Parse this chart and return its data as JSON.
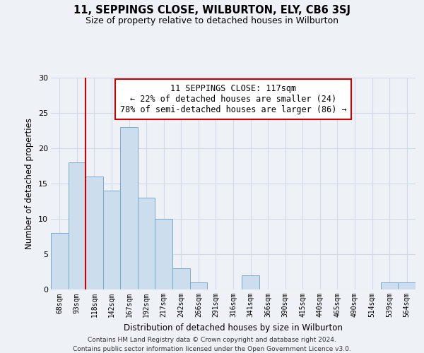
{
  "title": "11, SEPPINGS CLOSE, WILBURTON, ELY, CB6 3SJ",
  "subtitle": "Size of property relative to detached houses in Wilburton",
  "xlabel": "Distribution of detached houses by size in Wilburton",
  "ylabel": "Number of detached properties",
  "bar_color": "#ccdded",
  "bar_edge_color": "#7aaac8",
  "bins": [
    "68sqm",
    "93sqm",
    "118sqm",
    "142sqm",
    "167sqm",
    "192sqm",
    "217sqm",
    "242sqm",
    "266sqm",
    "291sqm",
    "316sqm",
    "341sqm",
    "366sqm",
    "390sqm",
    "415sqm",
    "440sqm",
    "465sqm",
    "490sqm",
    "514sqm",
    "539sqm",
    "564sqm"
  ],
  "values": [
    8,
    18,
    16,
    14,
    23,
    13,
    10,
    3,
    1,
    0,
    0,
    2,
    0,
    0,
    0,
    0,
    0,
    0,
    0,
    1,
    1
  ],
  "ylim": [
    0,
    30
  ],
  "yticks": [
    0,
    5,
    10,
    15,
    20,
    25,
    30
  ],
  "vline_index": 2,
  "vline_color": "#cc0000",
  "annotation_line1": "11 SEPPINGS CLOSE: 117sqm",
  "annotation_line2": "← 22% of detached houses are smaller (24)",
  "annotation_line3": "78% of semi-detached houses are larger (86) →",
  "annotation_box_edge": "#cc0000",
  "background_color": "#eef2f7",
  "grid_color": "#d0dae8",
  "footer1": "Contains HM Land Registry data © Crown copyright and database right 2024.",
  "footer2": "Contains public sector information licensed under the Open Government Licence v3.0."
}
